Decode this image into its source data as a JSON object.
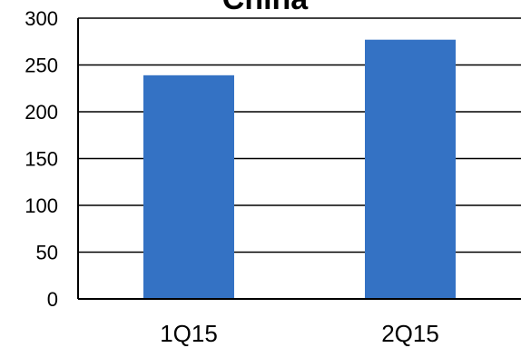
{
  "chart_data": {
    "type": "bar",
    "title": "China",
    "categories": [
      "1Q15",
      "2Q15"
    ],
    "values": [
      239,
      277
    ],
    "ylim": [
      0,
      300
    ],
    "yticks": [
      0,
      50,
      100,
      150,
      200,
      250,
      300
    ],
    "grid": true,
    "legend": "none",
    "bar_color": "#3472C4",
    "xlabel": "",
    "ylabel": ""
  }
}
